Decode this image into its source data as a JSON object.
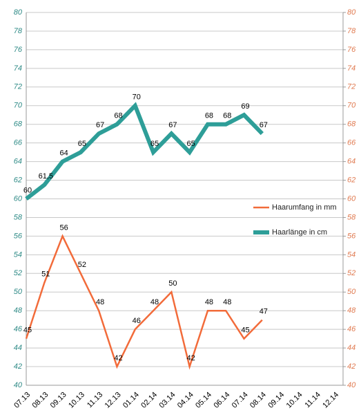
{
  "chart_data": {
    "type": "line",
    "categories": [
      "07.13",
      "08.13",
      "09.13",
      "10.13",
      "11.13",
      "12.13",
      "01.14",
      "02.14",
      "03.14",
      "04.14",
      "05.14",
      "06.14",
      "07.14",
      "08.14",
      "09.14",
      "10.14",
      "11.14",
      "12.14"
    ],
    "series": [
      {
        "name": "Haarumfang in mm",
        "color": "#f26b3a",
        "axis": "y2",
        "values": [
          45,
          51,
          56,
          52,
          48,
          42,
          46,
          48,
          50,
          42,
          48,
          48,
          45,
          47,
          null,
          null,
          null,
          null
        ]
      },
      {
        "name": "Haarlänge in cm",
        "color": "#2e9e98",
        "values": [
          60,
          61.5,
          64,
          65,
          67,
          68,
          70,
          65,
          67,
          65,
          68,
          68,
          69,
          67,
          null,
          null,
          null,
          null
        ],
        "value_labels": [
          "60",
          "61,5",
          "64",
          "65",
          "67",
          "68",
          "70",
          "65",
          "67",
          "65",
          "68",
          "68",
          "69",
          "67",
          null,
          null,
          null,
          null
        ]
      }
    ],
    "ylim": [
      40,
      80
    ],
    "yticks": [
      40,
      42,
      44,
      46,
      48,
      50,
      52,
      54,
      56,
      58,
      60,
      62,
      64,
      66,
      68,
      70,
      72,
      74,
      76,
      78,
      80
    ],
    "y2lim": [
      40,
      80
    ],
    "y2ticks": [
      40,
      42,
      44,
      46,
      48,
      50,
      52,
      54,
      56,
      58,
      60,
      62,
      64,
      66,
      68,
      70,
      72,
      74,
      76,
      78,
      80
    ],
    "grid": true
  }
}
